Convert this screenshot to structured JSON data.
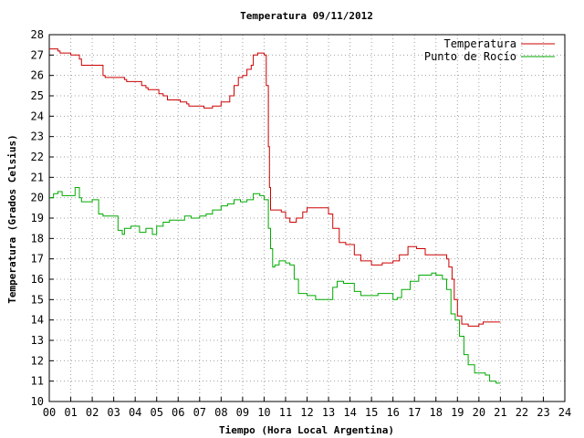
{
  "chart_data": {
    "type": "line",
    "title": "Temperatura 09/11/2012",
    "xlabel": "Tiempo (Hora Local Argentina)",
    "ylabel": "Temperatura (Grados Celsius)",
    "xlim": [
      0,
      24
    ],
    "ylim": [
      10,
      28
    ],
    "x_ticks": [
      "00",
      "01",
      "02",
      "03",
      "04",
      "05",
      "06",
      "07",
      "08",
      "09",
      "10",
      "11",
      "12",
      "13",
      "14",
      "15",
      "16",
      "17",
      "18",
      "19",
      "20",
      "21",
      "22",
      "23",
      "24"
    ],
    "y_ticks": [
      "10",
      "11",
      "12",
      "13",
      "14",
      "15",
      "16",
      "17",
      "18",
      "19",
      "20",
      "21",
      "22",
      "23",
      "24",
      "25",
      "26",
      "27",
      "28"
    ],
    "grid": true,
    "legend_position": "top-right",
    "series": [
      {
        "name": "Temperatura",
        "color": "#cc0000",
        "x": [
          0,
          0.4,
          0.5,
          1.0,
          1.4,
          1.5,
          2.1,
          2.5,
          2.6,
          3.3,
          3.5,
          3.6,
          4.1,
          4.3,
          4.5,
          4.6,
          5.1,
          5.3,
          5.5,
          6.1,
          6.4,
          6.5,
          7.2,
          7.5,
          7.6,
          8.0,
          8.2,
          8.4,
          8.6,
          8.8,
          9.0,
          9.2,
          9.4,
          9.5,
          9.7,
          10.0,
          10.1,
          10.2,
          10.25,
          10.3,
          10.5,
          10.8,
          11.0,
          11.2,
          11.5,
          11.8,
          12.0,
          12.8,
          13.0,
          13.2,
          13.5,
          13.8,
          14.2,
          14.5,
          15.0,
          15.5,
          16.0,
          16.3,
          16.7,
          17.1,
          17.5,
          18.0,
          18.3,
          18.5,
          18.6,
          18.75,
          18.85,
          19.0,
          19.2,
          19.5,
          20.0,
          20.2,
          20.5,
          21.0
        ],
        "y": [
          27.3,
          27.2,
          27.1,
          27.0,
          26.8,
          26.5,
          26.5,
          26.0,
          25.9,
          25.9,
          25.8,
          25.7,
          25.7,
          25.5,
          25.4,
          25.3,
          25.1,
          25.0,
          24.8,
          24.7,
          24.6,
          24.5,
          24.4,
          24.4,
          24.5,
          24.7,
          24.7,
          25.0,
          25.5,
          25.9,
          26.0,
          26.3,
          26.5,
          27.0,
          27.1,
          27.0,
          25.5,
          22.5,
          20.5,
          19.4,
          19.4,
          19.3,
          19.0,
          18.8,
          19.0,
          19.3,
          19.5,
          19.5,
          19.2,
          18.5,
          17.8,
          17.7,
          17.2,
          16.9,
          16.7,
          16.8,
          16.9,
          17.2,
          17.6,
          17.5,
          17.2,
          17.2,
          17.2,
          17.0,
          16.6,
          16.0,
          15.0,
          14.2,
          13.8,
          13.7,
          13.8,
          13.9,
          13.9,
          13.9
        ]
      },
      {
        "name": "Punto de Rocío",
        "color": "#00aa00",
        "x": [
          0,
          0.2,
          0.4,
          0.6,
          1.0,
          1.2,
          1.4,
          1.5,
          1.8,
          2.0,
          2.3,
          2.5,
          3.0,
          3.2,
          3.4,
          3.5,
          3.8,
          4.0,
          4.2,
          4.5,
          4.8,
          5.0,
          5.3,
          5.6,
          6.0,
          6.3,
          6.6,
          7.0,
          7.3,
          7.6,
          8.0,
          8.3,
          8.6,
          8.9,
          9.2,
          9.5,
          9.8,
          10.0,
          10.2,
          10.3,
          10.4,
          10.5,
          10.7,
          11.0,
          11.2,
          11.4,
          11.6,
          12.0,
          12.4,
          12.8,
          13.0,
          13.2,
          13.4,
          13.7,
          14.0,
          14.2,
          14.5,
          15.0,
          15.3,
          15.6,
          16.0,
          16.2,
          16.4,
          16.8,
          17.2,
          17.5,
          17.8,
          18.0,
          18.3,
          18.5,
          18.7,
          18.9,
          19.1,
          19.3,
          19.5,
          19.8,
          20.0,
          20.3,
          20.5,
          20.8,
          21.0
        ],
        "y": [
          20.0,
          20.2,
          20.3,
          20.1,
          20.1,
          20.5,
          20.0,
          19.8,
          19.8,
          19.9,
          19.2,
          19.1,
          19.1,
          18.4,
          18.2,
          18.5,
          18.6,
          18.6,
          18.3,
          18.5,
          18.2,
          18.6,
          18.8,
          18.9,
          18.9,
          19.1,
          19.0,
          19.1,
          19.2,
          19.4,
          19.6,
          19.7,
          19.9,
          19.8,
          19.9,
          20.2,
          20.1,
          19.9,
          18.5,
          17.5,
          16.6,
          16.7,
          16.9,
          16.8,
          16.7,
          16.0,
          15.3,
          15.2,
          15.0,
          15.0,
          15.0,
          15.6,
          15.9,
          15.8,
          15.8,
          15.4,
          15.2,
          15.2,
          15.3,
          15.3,
          15.0,
          15.1,
          15.5,
          15.9,
          16.2,
          16.2,
          16.3,
          16.2,
          16.0,
          15.5,
          14.3,
          14.0,
          13.2,
          12.3,
          11.8,
          11.4,
          11.4,
          11.3,
          11.0,
          10.9,
          10.9
        ]
      }
    ]
  }
}
